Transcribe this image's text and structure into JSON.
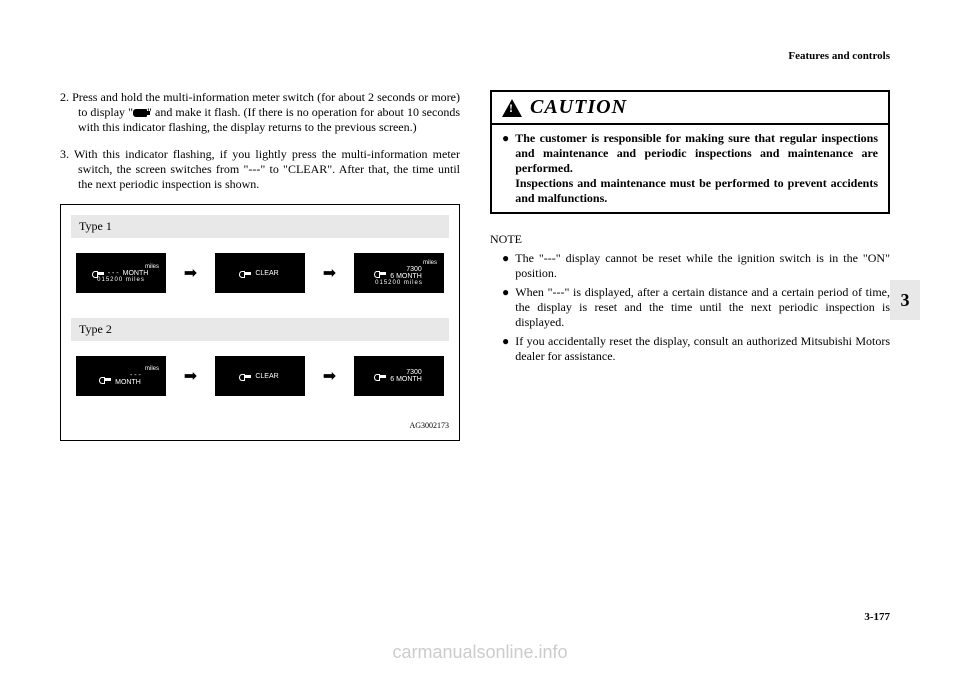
{
  "header": "Features and controls",
  "left_column": {
    "step2_num": "2.",
    "step2_text_a": "Press and hold the multi-information meter switch (for about 2 seconds or more) to display \"",
    "step2_text_b": "\" and make it flash. (If there is no operation for about 10 seconds with this indicator flashing, the display returns to the previous screen.)",
    "step3_num": "3.",
    "step3_text": "With this indicator flashing, if you lightly press the multi-information meter switch, the screen switches from \"---\" to \"CLEAR\". After that, the time until the next periodic inspection is shown."
  },
  "figure": {
    "type1_label": "Type 1",
    "type2_label": "Type 2",
    "screen1_top": "miles",
    "screen1_dashes": "- - -",
    "screen1_month": "MONTH",
    "screen1_odo": "015200 miles",
    "screen2_text": "CLEAR",
    "screen3_top": "miles",
    "screen3_value": "7300",
    "screen3_month_val": "6",
    "screen3_month": "MONTH",
    "screen3_odo": "015200 miles",
    "t2_screen1_top": "miles",
    "t2_screen1_dashes": "- - -",
    "t2_screen1_month": "MONTH",
    "t2_screen2_text": "CLEAR",
    "t2_screen3_value": "7300",
    "t2_screen3_month_val": "6",
    "t2_screen3_month": "MONTH",
    "figure_id": "AG3002173"
  },
  "caution": {
    "title": "CAUTION",
    "bullet": "●",
    "text1": "The customer is responsible for making sure that regular inspections and maintenance and periodic inspections and maintenance are performed.",
    "text2": "Inspections and maintenance must be performed to prevent accidents and malfunctions."
  },
  "note": {
    "title": "NOTE",
    "bullet": "●",
    "item1": "The \"---\" display cannot be reset while the ignition switch is in the \"ON\" position.",
    "item2": "When \"---\" is displayed, after a certain distance and a certain period of time, the display is reset and the time until the next periodic inspection is displayed.",
    "item3": "If you accidentally reset the display, consult an authorized Mitsubishi Motors dealer for assistance."
  },
  "side_tab": "3",
  "page_number": "3-177",
  "watermark": "carmanualsonline.info"
}
